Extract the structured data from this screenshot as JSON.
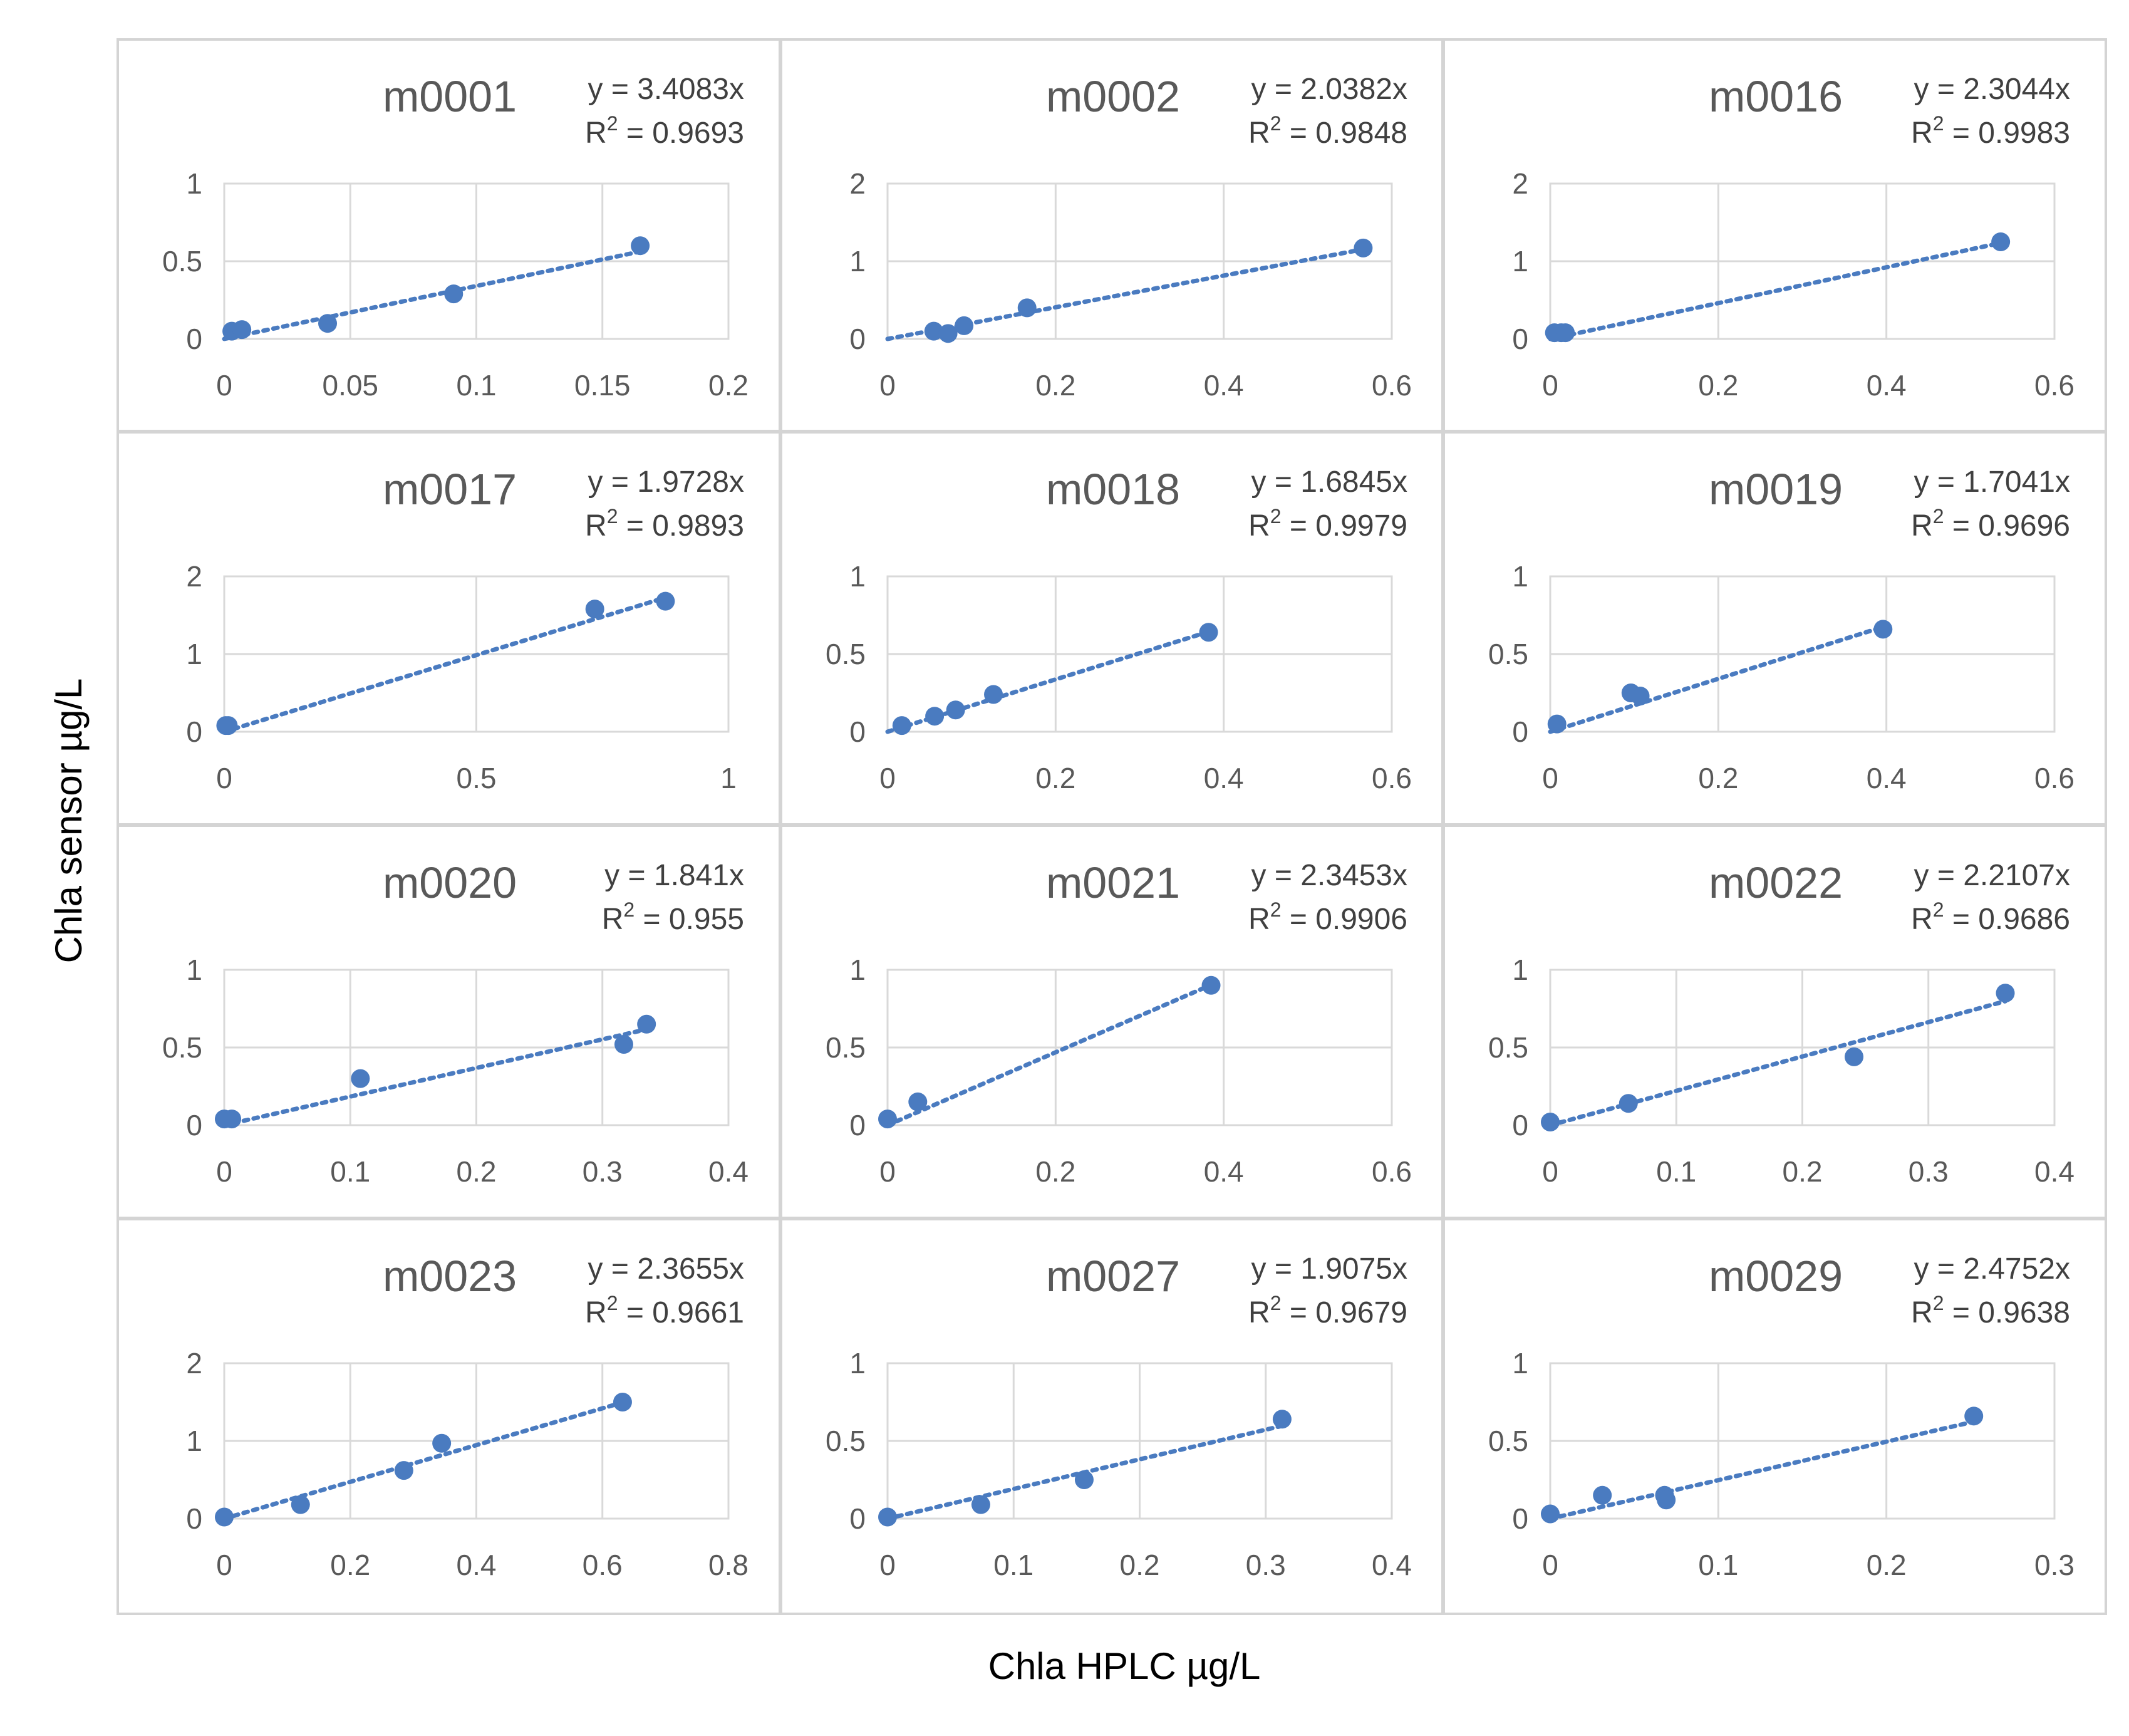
{
  "figure": {
    "ylabel": "Chla sensor µg/L",
    "xlabel": "Chla HPLC µg/L"
  },
  "chart_data": [
    {
      "type": "scatter",
      "title": "m0001",
      "equation": "y = 3.4083x",
      "r2_label": "R",
      "r2_value": " = 0.9693",
      "slope": 3.4083,
      "xlim": [
        0,
        0.2
      ],
      "xticks": [
        0,
        0.05,
        0.1,
        0.15,
        0.2
      ],
      "xtick_labels": [
        "0",
        "0.05",
        "0.1",
        "0.15",
        "0.2"
      ],
      "ylim": [
        0,
        1
      ],
      "yticks": [
        0,
        0.5,
        1
      ],
      "ytick_labels": [
        "0",
        "0.5",
        "1"
      ],
      "x": [
        0.003,
        0.007,
        0.041,
        0.091,
        0.165
      ],
      "y": [
        0.05,
        0.06,
        0.1,
        0.29,
        0.6
      ]
    },
    {
      "type": "scatter",
      "title": "m0002",
      "equation": "y = 2.0382x",
      "r2_label": "R",
      "r2_value": " = 0.9848",
      "slope": 2.0382,
      "xlim": [
        0,
        0.6
      ],
      "xticks": [
        0,
        0.2,
        0.4,
        0.6
      ],
      "xtick_labels": [
        "0",
        "0.2",
        "0.4",
        "0.6"
      ],
      "ylim": [
        0,
        2
      ],
      "yticks": [
        0,
        1,
        2
      ],
      "ytick_labels": [
        "0",
        "1",
        "2"
      ],
      "x": [
        0.055,
        0.072,
        0.091,
        0.166,
        0.566
      ],
      "y": [
        0.1,
        0.07,
        0.17,
        0.4,
        1.17
      ]
    },
    {
      "type": "scatter",
      "title": "m0016",
      "equation": "y = 2.3044x",
      "r2_label": "R",
      "r2_value": " = 0.9983",
      "slope": 2.3044,
      "xlim": [
        0,
        0.6
      ],
      "xticks": [
        0,
        0.2,
        0.4,
        0.6
      ],
      "xtick_labels": [
        "0",
        "0.2",
        "0.4",
        "0.6"
      ],
      "ylim": [
        0,
        2
      ],
      "yticks": [
        0,
        1,
        2
      ],
      "ytick_labels": [
        "0",
        "1",
        "2"
      ],
      "x": [
        0.005,
        0.013,
        0.018,
        0.536
      ],
      "y": [
        0.08,
        0.08,
        0.08,
        1.25
      ]
    },
    {
      "type": "scatter",
      "title": "m0017",
      "equation": "y = 1.9728x",
      "r2_label": "R",
      "r2_value": " = 0.9893",
      "slope": 1.9728,
      "xlim": [
        0,
        1
      ],
      "xticks": [
        0,
        0.5,
        1
      ],
      "xtick_labels": [
        "0",
        "0.5",
        "1"
      ],
      "ylim": [
        0,
        2
      ],
      "yticks": [
        0,
        1,
        2
      ],
      "ytick_labels": [
        "0",
        "1",
        "2"
      ],
      "x": [
        0.003,
        0.008,
        0.735,
        0.875
      ],
      "y": [
        0.08,
        0.08,
        1.58,
        1.68
      ]
    },
    {
      "type": "scatter",
      "title": "m0018",
      "equation": "y = 1.6845x",
      "r2_label": "R",
      "r2_value": " = 0.9979",
      "slope": 1.6845,
      "xlim": [
        0,
        0.6
      ],
      "xticks": [
        0,
        0.2,
        0.4,
        0.6
      ],
      "xtick_labels": [
        "0",
        "0.2",
        "0.4",
        "0.6"
      ],
      "ylim": [
        0,
        1
      ],
      "yticks": [
        0,
        0.5,
        1
      ],
      "ytick_labels": [
        "0",
        "0.5",
        "1"
      ],
      "x": [
        0.017,
        0.056,
        0.081,
        0.126,
        0.382
      ],
      "y": [
        0.04,
        0.1,
        0.14,
        0.24,
        0.64
      ]
    },
    {
      "type": "scatter",
      "title": "m0019",
      "equation": "y = 1.7041x",
      "r2_label": "R",
      "r2_value": " = 0.9696",
      "slope": 1.7041,
      "xlim": [
        0,
        0.6
      ],
      "xticks": [
        0,
        0.2,
        0.4,
        0.6
      ],
      "xtick_labels": [
        "0",
        "0.2",
        "0.4",
        "0.6"
      ],
      "ylim": [
        0,
        1
      ],
      "yticks": [
        0,
        0.5,
        1
      ],
      "ytick_labels": [
        "0",
        "0.5",
        "1"
      ],
      "x": [
        0.008,
        0.096,
        0.107,
        0.396
      ],
      "y": [
        0.05,
        0.25,
        0.23,
        0.66
      ]
    },
    {
      "type": "scatter",
      "title": "m0020",
      "equation": "y = 1.841x",
      "r2_label": "R",
      "r2_value": " = 0.955",
      "slope": 1.841,
      "xlim": [
        0,
        0.4
      ],
      "xticks": [
        0,
        0.1,
        0.2,
        0.3,
        0.4
      ],
      "xtick_labels": [
        "0",
        "0.1",
        "0.2",
        "0.3",
        "0.4"
      ],
      "ylim": [
        0,
        1
      ],
      "yticks": [
        0,
        0.5,
        1
      ],
      "ytick_labels": [
        "0",
        "0.5",
        "1"
      ],
      "x": [
        0.0,
        0.006,
        0.108,
        0.317,
        0.335
      ],
      "y": [
        0.04,
        0.04,
        0.3,
        0.52,
        0.65
      ]
    },
    {
      "type": "scatter",
      "title": "m0021",
      "equation": "y = 2.3453x",
      "r2_label": "R",
      "r2_value": " = 0.9906",
      "slope": 2.3453,
      "xlim": [
        0,
        0.6
      ],
      "xticks": [
        0,
        0.2,
        0.4,
        0.6
      ],
      "xtick_labels": [
        "0",
        "0.2",
        "0.4",
        "0.6"
      ],
      "ylim": [
        0,
        1
      ],
      "yticks": [
        0,
        0.5,
        1
      ],
      "ytick_labels": [
        "0",
        "0.5",
        "1"
      ],
      "x": [
        0.0,
        0.036,
        0.385
      ],
      "y": [
        0.04,
        0.15,
        0.9
      ]
    },
    {
      "type": "scatter",
      "title": "m0022",
      "equation": "y = 2.2107x",
      "r2_label": "R",
      "r2_value": " = 0.9686",
      "slope": 2.2107,
      "xlim": [
        0,
        0.4
      ],
      "xticks": [
        0,
        0.1,
        0.2,
        0.3,
        0.4
      ],
      "xtick_labels": [
        "0",
        "0.1",
        "0.2",
        "0.3",
        "0.4"
      ],
      "ylim": [
        0,
        1
      ],
      "yticks": [
        0,
        0.5,
        1
      ],
      "ytick_labels": [
        "0",
        "0.5",
        "1"
      ],
      "x": [
        0.0,
        0.062,
        0.241,
        0.361
      ],
      "y": [
        0.02,
        0.14,
        0.44,
        0.85
      ]
    },
    {
      "type": "scatter",
      "title": "m0023",
      "equation": "y = 2.3655x",
      "r2_label": "R",
      "r2_value": " = 0.9661",
      "slope": 2.3655,
      "xlim": [
        0,
        0.8
      ],
      "xticks": [
        0,
        0.2,
        0.4,
        0.6,
        0.8
      ],
      "xtick_labels": [
        "0",
        "0.2",
        "0.4",
        "0.6",
        "0.8"
      ],
      "ylim": [
        0,
        2
      ],
      "yticks": [
        0,
        1,
        2
      ],
      "ytick_labels": [
        "0",
        "1",
        "2"
      ],
      "x": [
        0.0,
        0.121,
        0.285,
        0.345,
        0.632
      ],
      "y": [
        0.02,
        0.18,
        0.62,
        0.97,
        1.5
      ]
    },
    {
      "type": "scatter",
      "title": "m0027",
      "equation": "y = 1.9075x",
      "r2_label": "R",
      "r2_value": " = 0.9679",
      "slope": 1.9075,
      "xlim": [
        0,
        0.4
      ],
      "xticks": [
        0,
        0.1,
        0.2,
        0.3,
        0.4
      ],
      "xtick_labels": [
        "0",
        "0.1",
        "0.2",
        "0.3",
        "0.4"
      ],
      "ylim": [
        0,
        1
      ],
      "yticks": [
        0,
        0.5,
        1
      ],
      "ytick_labels": [
        "0",
        "0.5",
        "1"
      ],
      "x": [
        0.0,
        0.074,
        0.156,
        0.313
      ],
      "y": [
        0.01,
        0.09,
        0.25,
        0.64
      ]
    },
    {
      "type": "scatter",
      "title": "m0029",
      "equation": "y = 2.4752x",
      "r2_label": "R",
      "r2_value": " = 0.9638",
      "slope": 2.4752,
      "xlim": [
        0,
        0.3
      ],
      "xticks": [
        0,
        0.1,
        0.2,
        0.3
      ],
      "xtick_labels": [
        "0",
        "0.1",
        "0.2",
        "0.3"
      ],
      "ylim": [
        0,
        1
      ],
      "yticks": [
        0,
        0.5,
        1
      ],
      "ytick_labels": [
        "0",
        "0.5",
        "1"
      ],
      "x": [
        0.0,
        0.031,
        0.068,
        0.069,
        0.252
      ],
      "y": [
        0.03,
        0.15,
        0.15,
        0.12,
        0.66
      ]
    }
  ]
}
